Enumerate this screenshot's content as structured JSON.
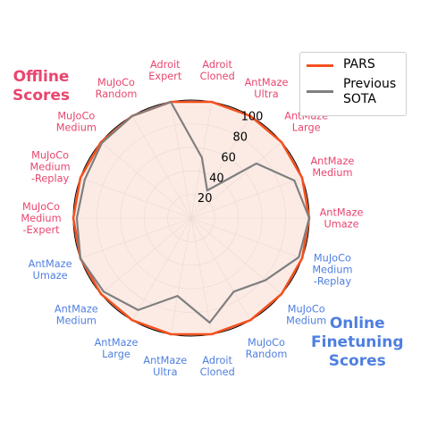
{
  "colors": {
    "pars": "#f4511e",
    "pars_fill": "#fbe4dc",
    "sota": "#7f7f7f",
    "offline_label": "#e8466e",
    "online_label": "#4f7fe0"
  },
  "titles": {
    "offline": [
      "Offline",
      "Scores"
    ],
    "online": [
      "Online",
      "Finetuning",
      "Scores"
    ]
  },
  "legend": {
    "placement": "top-right",
    "items": [
      {
        "label": [
          "PARS"
        ],
        "color": "#f4511e"
      },
      {
        "label": [
          "Previous",
          "SOTA"
        ],
        "color": "#7f7f7f"
      }
    ]
  },
  "chart_data": {
    "type": "radar",
    "r_range": [
      0,
      100
    ],
    "r_ticks": [
      20,
      40,
      60,
      80,
      100
    ],
    "grid": true,
    "categories": [
      {
        "label": [
          "Adroit",
          "Cloned"
        ],
        "group": "offline"
      },
      {
        "label": [
          "AntMaze",
          "Ultra"
        ],
        "group": "offline"
      },
      {
        "label": [
          "AntMaze",
          "Large"
        ],
        "group": "offline"
      },
      {
        "label": [
          "AntMaze",
          "Medium"
        ],
        "group": "offline"
      },
      {
        "label": [
          "AntMaze",
          "Umaze"
        ],
        "group": "offline"
      },
      {
        "label": [
          "MuJoCo",
          "Medium",
          "-Replay"
        ],
        "group": "online"
      },
      {
        "label": [
          "MuJoCo",
          "Medium"
        ],
        "group": "online"
      },
      {
        "label": [
          "MuJoCo",
          "Random"
        ],
        "group": "online"
      },
      {
        "label": [
          "Adroit",
          "Cloned"
        ],
        "group": "online"
      },
      {
        "label": [
          "AntMaze",
          "Ultra"
        ],
        "group": "online"
      },
      {
        "label": [
          "AntMaze",
          "Large"
        ],
        "group": "online"
      },
      {
        "label": [
          "AntMaze",
          "Medium"
        ],
        "group": "online"
      },
      {
        "label": [
          "AntMaze",
          "Umaze"
        ],
        "group": "online"
      },
      {
        "label": [
          "MuJoCo",
          "Medium",
          "-Expert"
        ],
        "group": "offline"
      },
      {
        "label": [
          "MuJoCo",
          "Medium",
          "-Replay"
        ],
        "group": "offline"
      },
      {
        "label": [
          "MuJoCo",
          "Medium"
        ],
        "group": "offline"
      },
      {
        "label": [
          "MuJoCo",
          "Random"
        ],
        "group": "offline"
      },
      {
        "label": [
          "Adroit",
          "Expert"
        ],
        "group": "offline"
      }
    ],
    "series": [
      {
        "name": "PARS",
        "values": [
          100,
          100,
          100,
          100,
          100,
          100,
          100,
          100,
          100,
          100,
          100,
          100,
          100,
          100,
          100,
          100,
          100,
          100
        ]
      },
      {
        "name": "Previous SOTA",
        "values": [
          52,
          27,
          72,
          93,
          100,
          97,
          82,
          72,
          90,
          67,
          90,
          97,
          100,
          97,
          96,
          99,
          100,
          100
        ]
      }
    ]
  }
}
